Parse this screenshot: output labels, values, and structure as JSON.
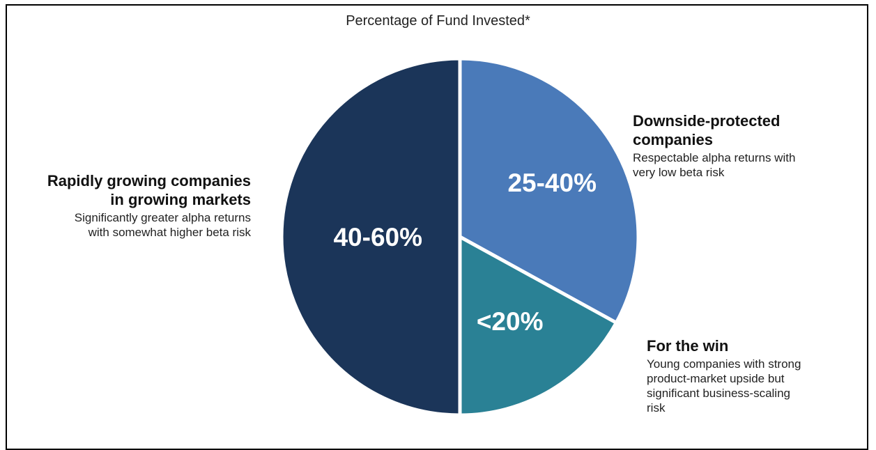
{
  "chart_data": {
    "type": "pie",
    "title": "Percentage of Fund Invested*",
    "slices": [
      {
        "value_label": "25-40%",
        "share": 33,
        "color": "#4a7ab9",
        "heading": "Downside-protected companies",
        "description": "Respectable alpha returns with very low beta risk"
      },
      {
        "value_label": "<20%",
        "share": 17,
        "color": "#2a8195",
        "heading": "For the win",
        "description": "Young companies with strong product-market upside but significant business-scaling risk"
      },
      {
        "value_label": "40-60%",
        "share": 50,
        "color": "#1b3559",
        "heading": "Rapidly growing companies in growing markets",
        "description": "Significantly greater alpha returns with somewhat higher beta risk"
      }
    ]
  },
  "annotations": {
    "downside": {
      "heading_line1": "Downside-protected",
      "heading_line2": "companies",
      "desc_line1": "Respectable alpha returns with",
      "desc_line2": "very low beta risk"
    },
    "win": {
      "heading_line1": "For the win",
      "desc_line1": "Young companies with strong",
      "desc_line2": "product-market upside but",
      "desc_line3": "significant business-scaling",
      "desc_line4": "risk"
    },
    "growth": {
      "heading_line1": "Rapidly growing companies",
      "heading_line2": "in growing markets",
      "desc_line1": "Significantly greater alpha returns",
      "desc_line2": "with somewhat higher beta risk"
    }
  }
}
